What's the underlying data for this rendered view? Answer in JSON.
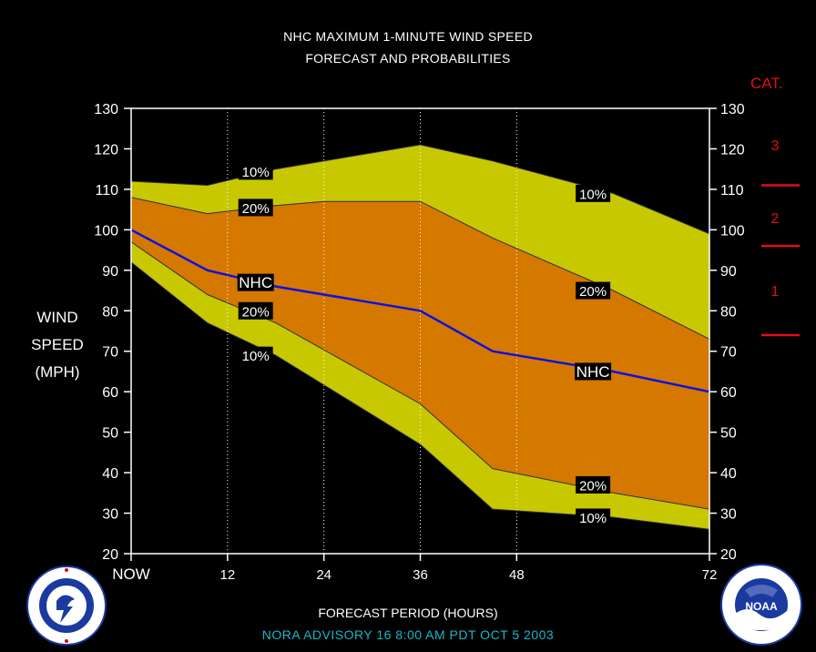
{
  "title_line1": "NHC MAXIMUM 1-MINUTE WIND SPEED",
  "title_line2": "FORECAST AND PROBABILITIES",
  "ylabel_lines": [
    "WIND",
    "SPEED",
    "(MPH)"
  ],
  "cat_title": "CAT.",
  "xlabel": "FORECAST PERIOD (HOURS)",
  "advisory_line": "NORA   ADVISORY  16  8:00  AM  PDT  OCT  5  2003",
  "nws_logo_text": "NATIONAL WEATHER SERVICE",
  "noaa_logo_text": "NOAA",
  "colors": {
    "outer_band": "#c8c800",
    "inner_band": "#d47800",
    "nhc_line": "#1010e0",
    "category": "#e01010",
    "advisory": "#18b8c8",
    "background": "#000000"
  },
  "chart_data": {
    "type": "area",
    "x": [
      0,
      12,
      24,
      36,
      48,
      72
    ],
    "x_tick_labels": [
      "NOW",
      "12",
      "24",
      "36",
      "48",
      "72"
    ],
    "ylim": [
      20,
      130
    ],
    "y_ticks": [
      20,
      30,
      40,
      50,
      60,
      70,
      80,
      90,
      100,
      110,
      120,
      130
    ],
    "vertical_gridlines_at": [
      12,
      24,
      36,
      48
    ],
    "series": [
      {
        "name": "10%",
        "role": "upper10",
        "x": [
          0,
          9.5,
          18,
          36,
          45,
          60,
          72
        ],
        "values": [
          112,
          111,
          115,
          121,
          117,
          109,
          99
        ]
      },
      {
        "name": "20%",
        "role": "upper20",
        "x": [
          0,
          9.5,
          18,
          24,
          36,
          45,
          60,
          72
        ],
        "values": [
          108,
          104,
          106,
          107,
          107,
          98,
          85,
          73
        ]
      },
      {
        "name": "NHC",
        "role": "nhc",
        "x": [
          0,
          9.5,
          18,
          36,
          45,
          60,
          72
        ],
        "values": [
          100,
          90,
          86,
          80,
          70,
          65,
          60
        ]
      },
      {
        "name": "20%",
        "role": "lower20",
        "x": [
          0,
          9.5,
          18,
          36,
          45,
          60,
          72
        ],
        "values": [
          97,
          84,
          77,
          57,
          41,
          35,
          31
        ]
      },
      {
        "name": "10%",
        "role": "lower10",
        "x": [
          0,
          9.5,
          18,
          36,
          45,
          60,
          72
        ],
        "values": [
          92,
          77,
          69,
          47,
          31,
          29,
          26
        ]
      }
    ],
    "annotations": [
      {
        "text": "10%",
        "x": 15.5,
        "y": 114.5
      },
      {
        "text": "20%",
        "x": 15.5,
        "y": 105.5
      },
      {
        "text": "NHC",
        "x": 15.5,
        "y": 87
      },
      {
        "text": "20%",
        "x": 15.5,
        "y": 80
      },
      {
        "text": "10%",
        "x": 15.5,
        "y": 69
      },
      {
        "text": "10%",
        "x": 57.5,
        "y": 109
      },
      {
        "text": "20%",
        "x": 57.5,
        "y": 85
      },
      {
        "text": "NHC",
        "x": 57.5,
        "y": 65
      },
      {
        "text": "20%",
        "x": 57.5,
        "y": 37
      },
      {
        "text": "10%",
        "x": 57.5,
        "y": 29
      }
    ],
    "categories": {
      "labels": [
        {
          "text": "3",
          "at": 121
        },
        {
          "text": "2",
          "at": 103
        },
        {
          "text": "1",
          "at": 85
        }
      ],
      "thresholds": [
        111,
        96,
        74
      ]
    }
  }
}
